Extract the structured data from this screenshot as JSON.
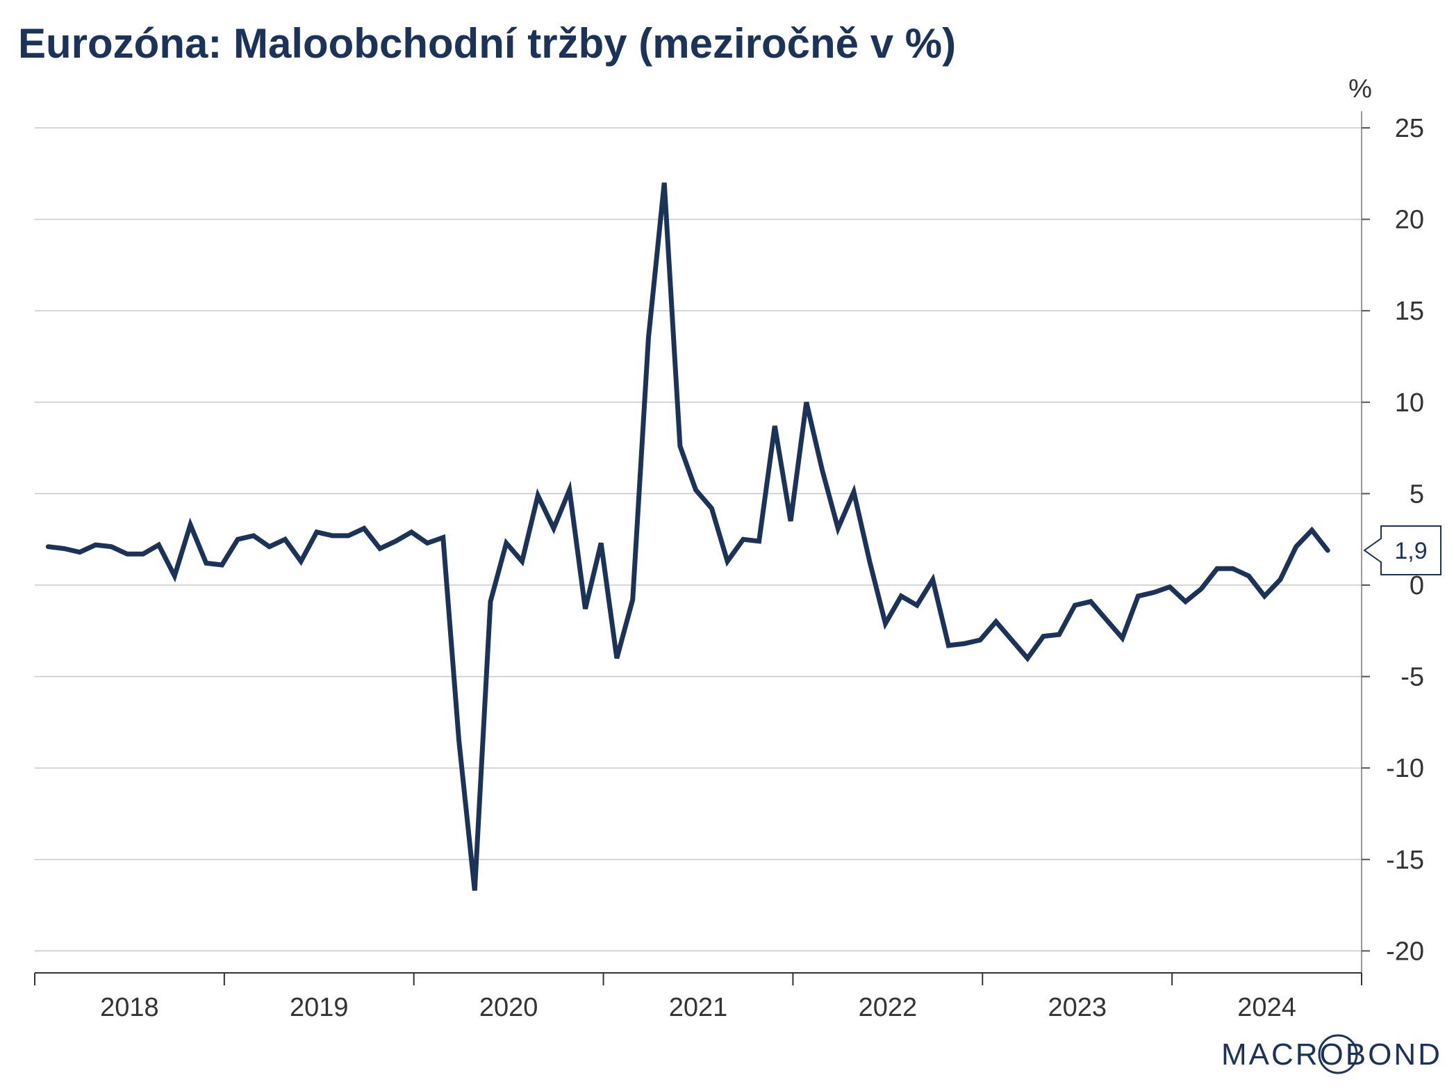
{
  "chart_data": {
    "type": "line",
    "title": "Eurozóna: Maloobchodní tržby (meziročně v %)",
    "y_unit": "%",
    "ylim": [
      -21,
      26
    ],
    "y_ticks": [
      25,
      20,
      15,
      10,
      5,
      0,
      -5,
      -10,
      -15,
      -20
    ],
    "y_tick_labels": [
      "25",
      "20",
      "15",
      "10",
      "5",
      "0",
      "-5",
      "-10",
      "-15",
      "-20"
    ],
    "x_start": "2018-01",
    "x_end": "2024-12",
    "x_labels": [
      "2018",
      "2019",
      "2020",
      "2021",
      "2022",
      "2023",
      "2024"
    ],
    "grid": true,
    "legend": "none",
    "line_color": "#1b3358",
    "last_value_label": "1,9",
    "series": [
      {
        "values": [
          2.1,
          2.0,
          1.8,
          2.2,
          2.1,
          1.7,
          1.7,
          2.2,
          0.5,
          3.3,
          1.2,
          1.1,
          2.5,
          2.7,
          2.1,
          2.5,
          1.3,
          2.9,
          2.7,
          2.7,
          3.1,
          2.0,
          2.4,
          2.9,
          2.3,
          2.6,
          -8.5,
          -16.7,
          -0.9,
          2.3,
          1.3,
          4.9,
          3.1,
          5.2,
          -1.3,
          2.3,
          -4.0,
          -0.8,
          13.5,
          22.0,
          7.6,
          5.2,
          4.2,
          1.3,
          2.5,
          2.4,
          8.7,
          3.5,
          10.0,
          6.3,
          3.1,
          5.1,
          1.3,
          -2.1,
          -0.6,
          -1.1,
          0.3,
          -3.3,
          -3.2,
          -3.0,
          -2.0,
          -3.0,
          -4.0,
          -2.8,
          -2.7,
          -1.1,
          -0.9,
          -1.9,
          -2.9,
          -0.6,
          -0.4,
          -0.1,
          -0.9,
          -0.2,
          0.9,
          0.9,
          0.5,
          -0.6,
          0.3,
          2.1,
          3.0,
          1.9
        ]
      }
    ],
    "source_logo": "MACROBOND"
  }
}
